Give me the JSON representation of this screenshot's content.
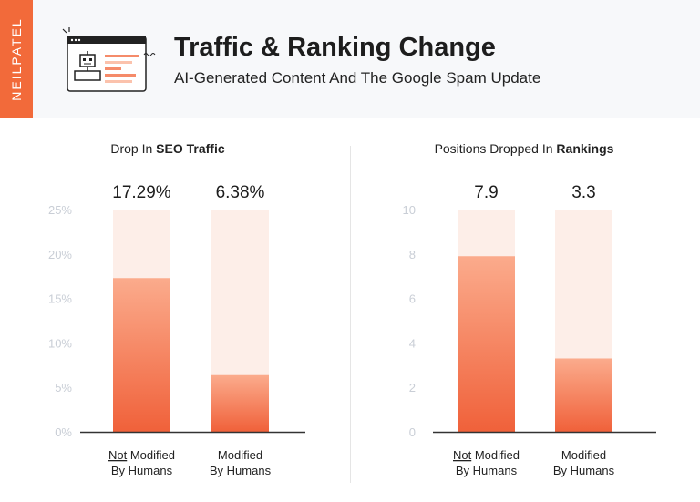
{
  "brand": "NEILPATEL",
  "header": {
    "title": "Traffic & Ranking Change",
    "subtitle": "AI-Generated Content And The Google Spam Update"
  },
  "colors": {
    "brand": "#f26a3a",
    "bar_top": "#fbab8c",
    "bar_bottom": "#f0613a",
    "track": "#fdeee8"
  },
  "chart_data": [
    {
      "type": "bar",
      "title_plain": "Drop In ",
      "title_bold": "SEO Traffic",
      "categories": [
        {
          "underlined": "Not",
          "line1": " Modified",
          "line2": "By Humans"
        },
        {
          "underlined": "",
          "line1": "Modified",
          "line2": "By Humans"
        }
      ],
      "values": [
        17.29,
        6.38
      ],
      "data_labels": [
        "17.29%",
        "6.38%"
      ],
      "ylim": [
        0,
        25
      ],
      "ticks": [
        "0%",
        "5%",
        "10%",
        "15%",
        "20%",
        "25%"
      ],
      "tick_values": [
        0,
        5,
        10,
        15,
        20,
        25
      ]
    },
    {
      "type": "bar",
      "title_plain": "Positions Dropped In ",
      "title_bold": "Rankings",
      "categories": [
        {
          "underlined": "Not",
          "line1": " Modified",
          "line2": "By Humans"
        },
        {
          "underlined": "",
          "line1": "Modified",
          "line2": "By Humans"
        }
      ],
      "values": [
        7.9,
        3.3
      ],
      "data_labels": [
        "7.9",
        "3.3"
      ],
      "ylim": [
        0,
        10
      ],
      "ticks": [
        "0",
        "2",
        "4",
        "6",
        "8",
        "10"
      ],
      "tick_values": [
        0,
        2,
        4,
        6,
        8,
        10
      ]
    }
  ]
}
